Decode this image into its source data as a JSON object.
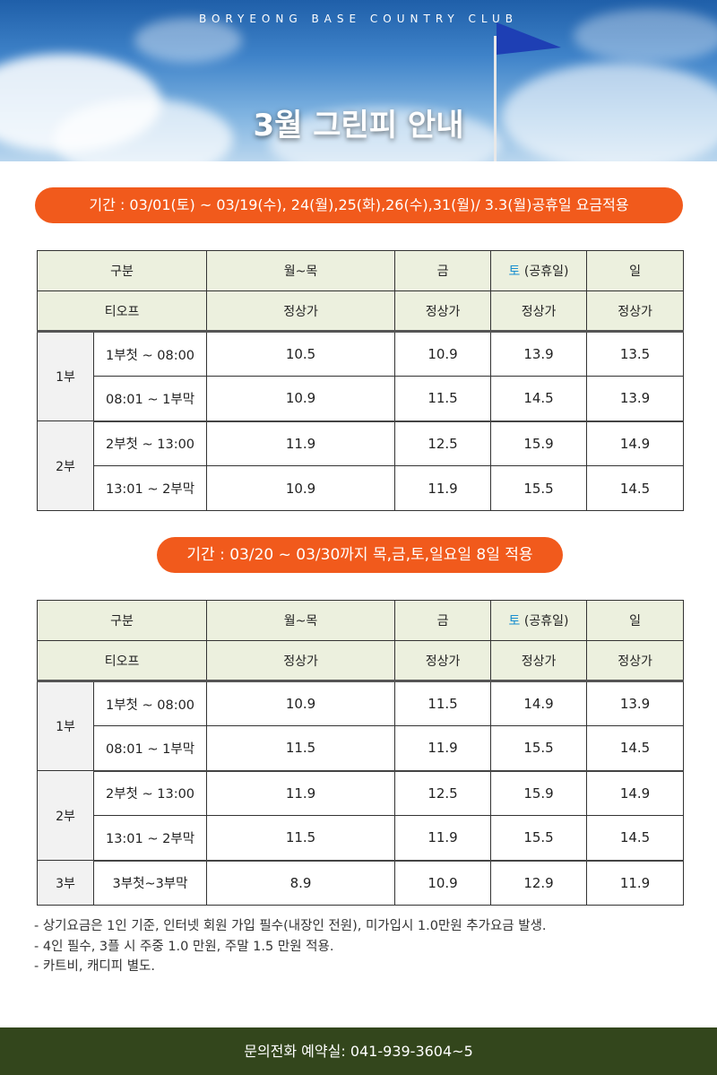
{
  "header": {
    "club_name": "BORYEONG BASE COUNTRY CLUB",
    "title": "3월 그린피 안내"
  },
  "colors": {
    "accent_orange": "#f15a1c",
    "header_bg": "#ecf0de",
    "footer_bg": "#33461c",
    "saturday": "#1a8fd0",
    "sunday": "#e02020"
  },
  "period1": {
    "label": "기간 : 03/01(토) ~ 03/19(수), 24(월),25(화),26(수),31(월)/ 3.3(월)공휴일 요금적용",
    "head": {
      "category": "구분",
      "weekday": "월~목",
      "fri": "금",
      "sat": "토",
      "sat_note": "(공휴일)",
      "sun": "일",
      "teeoff": "티오프",
      "regular": "정상가"
    },
    "rows": [
      {
        "part": "1부",
        "time": "1부첫 ~ 08:00",
        "weekday": "10.5",
        "fri": "10.9",
        "sat": "13.9",
        "sun": "13.5"
      },
      {
        "time": "08:01 ~ 1부막",
        "weekday": "10.9",
        "fri": "11.5",
        "sat": "14.5",
        "sun": "13.9"
      },
      {
        "part": "2부",
        "time": "2부첫 ~ 13:00",
        "weekday": "11.9",
        "fri": "12.5",
        "sat": "15.9",
        "sun": "14.9"
      },
      {
        "time": "13:01 ~ 2부막",
        "weekday": "10.9",
        "fri": "11.9",
        "sat": "15.5",
        "sun": "14.5"
      }
    ]
  },
  "period2": {
    "label": "기간 : 03/20 ~ 03/30까지  목,금,토,일요일 8일 적용",
    "head": {
      "category": "구분",
      "weekday": "월~목",
      "fri": "금",
      "sat": "토",
      "sat_note": "(공휴일)",
      "sun": "일",
      "teeoff": "티오프",
      "regular": "정상가"
    },
    "rows": [
      {
        "part": "1부",
        "time": "1부첫 ~ 08:00",
        "weekday": "10.9",
        "fri": "11.5",
        "sat": "14.9",
        "sun": "13.9"
      },
      {
        "time": "08:01 ~ 1부막",
        "weekday": "11.5",
        "fri": "11.9",
        "sat": "15.5",
        "sun": "14.5"
      },
      {
        "part": "2부",
        "time": "2부첫 ~ 13:00",
        "weekday": "11.9",
        "fri": "12.5",
        "sat": "15.9",
        "sun": "14.9"
      },
      {
        "time": "13:01 ~ 2부막",
        "weekday": "11.5",
        "fri": "11.9",
        "sat": "15.5",
        "sun": "14.5"
      },
      {
        "part": "3부",
        "time": "3부첫~3부막",
        "weekday": "8.9",
        "fri": "10.9",
        "sat": "12.9",
        "sun": "11.9"
      }
    ]
  },
  "notes": [
    "- 상기요금은 1인 기준, 인터넷 회원 가입 필수(내장인 전원), 미가입시 1.0만원 추가요금 발생.",
    "- 4인 필수, 3플 시 주중 1.0 만원, 주말 1.5 만원 적용.",
    "- 카트비, 캐디피 별도."
  ],
  "footer": {
    "contact": "문의전화 예약실: 041-939-3604~5"
  }
}
